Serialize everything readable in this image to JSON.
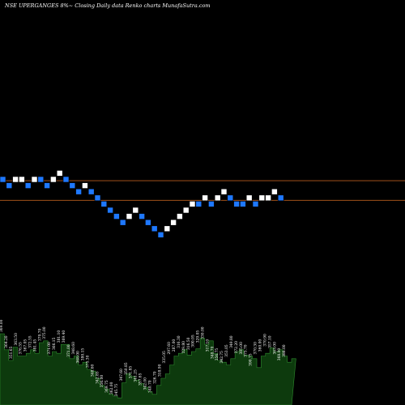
{
  "header": {
    "title": "NSE UPERGANGES 8%~  Closing Daily data  Renko  charts MunafaSutra.com"
  },
  "colors": {
    "background": "#000000",
    "up_brick": "#ffffff",
    "down_brick": "#1e78ff",
    "brick_border": "#000000",
    "ref_line": "#b85c1e",
    "volume_fill": "#0d3a0d",
    "volume_outline": "#2e8b2e"
  },
  "chart_data": {
    "type": "renko",
    "title": "NSE UPERGANGES 8%~  Closing Daily data  Renko  charts MunafaSutra.com",
    "brick_size_units": 1,
    "bricks": [
      {
        "level": 0,
        "dir": "down"
      },
      {
        "level": -1,
        "dir": "down"
      },
      {
        "level": 0,
        "dir": "up"
      },
      {
        "level": 0,
        "dir": "up"
      },
      {
        "level": -1,
        "dir": "down"
      },
      {
        "level": 0,
        "dir": "up"
      },
      {
        "level": 0,
        "dir": "down"
      },
      {
        "level": -1,
        "dir": "down"
      },
      {
        "level": 0,
        "dir": "up"
      },
      {
        "level": 1,
        "dir": "up"
      },
      {
        "level": 0,
        "dir": "down"
      },
      {
        "level": -1,
        "dir": "down"
      },
      {
        "level": -2,
        "dir": "down"
      },
      {
        "level": -1,
        "dir": "up"
      },
      {
        "level": -2,
        "dir": "down"
      },
      {
        "level": -3,
        "dir": "down"
      },
      {
        "level": -4,
        "dir": "down"
      },
      {
        "level": -5,
        "dir": "down"
      },
      {
        "level": -6,
        "dir": "down"
      },
      {
        "level": -7,
        "dir": "down"
      },
      {
        "level": -6,
        "dir": "up"
      },
      {
        "level": -5,
        "dir": "up"
      },
      {
        "level": -6,
        "dir": "down"
      },
      {
        "level": -7,
        "dir": "down"
      },
      {
        "level": -8,
        "dir": "down"
      },
      {
        "level": -9,
        "dir": "down"
      },
      {
        "level": -8,
        "dir": "up"
      },
      {
        "level": -7,
        "dir": "up"
      },
      {
        "level": -6,
        "dir": "up"
      },
      {
        "level": -5,
        "dir": "up"
      },
      {
        "level": -4,
        "dir": "up"
      },
      {
        "level": -4,
        "dir": "down"
      },
      {
        "level": -3,
        "dir": "up"
      },
      {
        "level": -4,
        "dir": "down"
      },
      {
        "level": -3,
        "dir": "up"
      },
      {
        "level": -2,
        "dir": "up"
      },
      {
        "level": -3,
        "dir": "down"
      },
      {
        "level": -4,
        "dir": "down"
      },
      {
        "level": -4,
        "dir": "down"
      },
      {
        "level": -3,
        "dir": "up"
      },
      {
        "level": -4,
        "dir": "down"
      },
      {
        "level": -3,
        "dir": "up"
      },
      {
        "level": -3,
        "dir": "up"
      },
      {
        "level": -2,
        "dir": "up"
      },
      {
        "level": -3,
        "dir": "down"
      }
    ],
    "reference_levels": [
      -0.2,
      -3.4
    ],
    "volume": {
      "values": [
        80,
        62,
        50,
        65,
        55,
        55,
        58,
        62,
        58,
        70,
        72,
        55,
        60,
        58,
        68,
        68,
        52,
        55,
        45,
        48,
        40,
        38,
        30,
        22,
        18,
        12,
        10,
        8,
        25,
        35,
        32,
        28,
        24,
        20,
        15,
        12,
        22,
        30,
        35,
        45,
        55,
        58,
        62,
        56,
        60,
        63,
        75,
        68,
        72,
        58,
        50,
        48,
        45,
        52,
        60,
        62,
        56,
        55,
        52,
        42,
        55,
        58,
        64,
        60,
        62,
        55,
        48,
        52
      ]
    },
    "volume_labels": [
      "369.00",
      "364.20",
      "351.65",
      "363.50",
      "376.55",
      "367.05",
      "372.55",
      "381.45",
      "379.70",
      "375.00",
      "371.00",
      "366.15",
      "381.10",
      "369.40",
      "371.00",
      "348.60",
      "368.00",
      "380.15",
      "375.30",
      "348.60",
      "342.85",
      "356.00",
      "369.75",
      "362.00",
      "345.75",
      "347.60",
      "350.85",
      "371.85",
      "341.25",
      "357.65",
      "342.00",
      "340.70",
      "326.70",
      "318.90",
      "335.05",
      "297.60",
      "287.00",
      "316.30",
      "329.80",
      "316.50",
      "300.05",
      "329.05",
      "330.00",
      "317.10",
      "348.70",
      "356.75",
      "342.75",
      "353.05",
      "349.80",
      "372.20",
      "385.00",
      "375.70",
      "390.75",
      "370.30",
      "360.00",
      "370.90",
      "357.10",
      "363.00",
      "368.80",
      "388.00"
    ]
  }
}
